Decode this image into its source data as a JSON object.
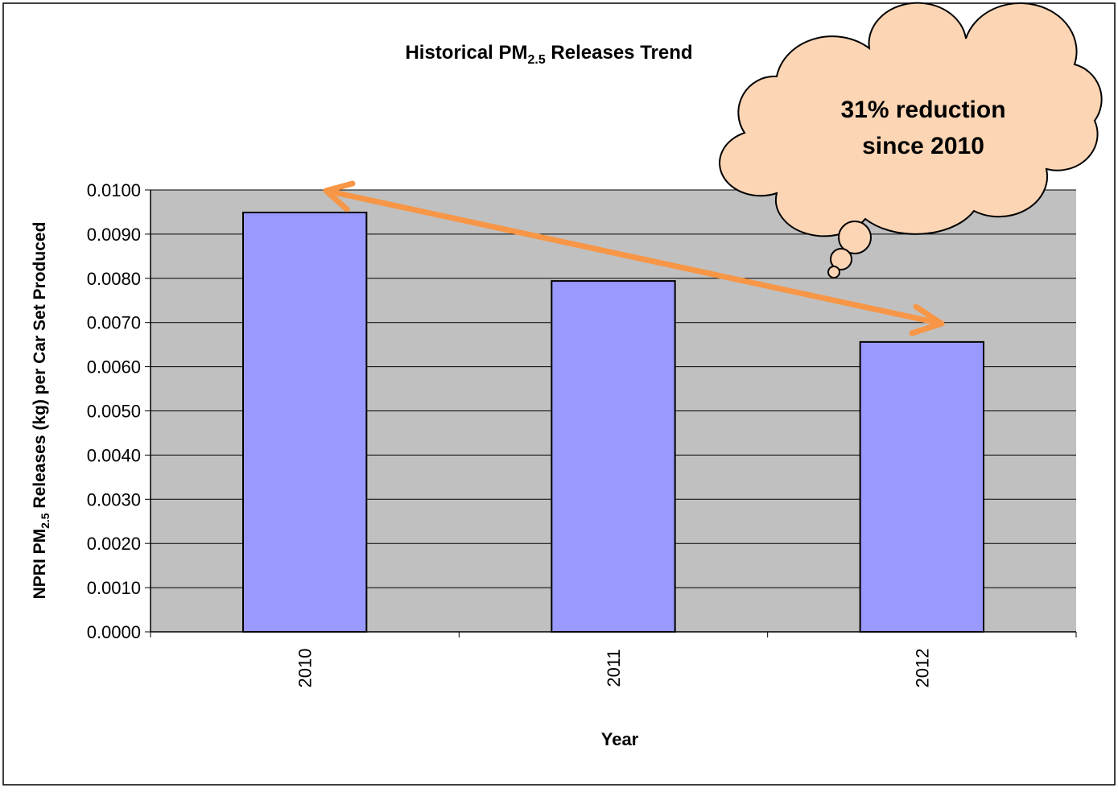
{
  "chart_data": {
    "type": "bar",
    "title": {
      "before": "Historical PM",
      "subscript": "2.5",
      "after": " Releases Trend"
    },
    "y_label": {
      "before": "NPRI PM",
      "subscript": "2.5",
      "after": " Releases  (kg) per Car Set Produced"
    },
    "x_label": "Year",
    "categories": [
      "2010",
      "2011",
      "2012"
    ],
    "values": [
      0.00949,
      0.00794,
      0.00656
    ],
    "color": "#9999ff",
    "plot_background": "#c0c0c0",
    "ylim": [
      0,
      0.01
    ],
    "yticks": [
      {
        "value": 0,
        "label": "0.0000"
      },
      {
        "value": 0.001,
        "label": "0.0010"
      },
      {
        "value": 0.002,
        "label": "0.0020"
      },
      {
        "value": 0.003,
        "label": "0.0030"
      },
      {
        "value": 0.004,
        "label": "0.0040"
      },
      {
        "value": 0.005,
        "label": "0.0050"
      },
      {
        "value": 0.006,
        "label": "0.0060"
      },
      {
        "value": 0.007,
        "label": "0.0070"
      },
      {
        "value": 0.008,
        "label": "0.0080"
      },
      {
        "value": 0.009,
        "label": "0.0090"
      },
      {
        "value": 0.01,
        "label": "0.0100"
      }
    ],
    "grid": true,
    "annotation": [
      "31% reduction",
      "since 2010"
    ]
  }
}
